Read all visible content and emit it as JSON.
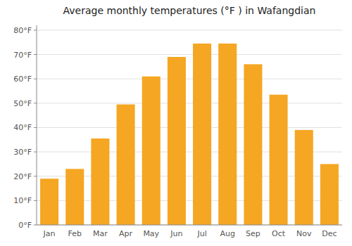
{
  "chart_data": {
    "type": "bar",
    "title": "Average monthly temperatures (°F ) in Wafangdian",
    "categories": [
      "Jan",
      "Feb",
      "Mar",
      "Apr",
      "May",
      "Jun",
      "Jul",
      "Aug",
      "Sep",
      "Oct",
      "Nov",
      "Dec"
    ],
    "values": [
      19,
      23,
      35.5,
      49.5,
      61,
      69,
      74.5,
      74.5,
      66,
      53.5,
      39,
      25
    ],
    "color": "#F5A623",
    "ylim": [
      0,
      82
    ],
    "yticks": [
      {
        "value": 0,
        "label": "0°F"
      },
      {
        "value": 10,
        "label": "10°F"
      },
      {
        "value": 20,
        "label": "20°F"
      },
      {
        "value": 30,
        "label": "30°F"
      },
      {
        "value": 40,
        "label": "40°F"
      },
      {
        "value": 50,
        "label": "50°F"
      },
      {
        "value": 60,
        "label": "60°F"
      },
      {
        "value": 70,
        "label": "70°F"
      },
      {
        "value": 80,
        "label": "80°F"
      }
    ],
    "grid": true
  }
}
